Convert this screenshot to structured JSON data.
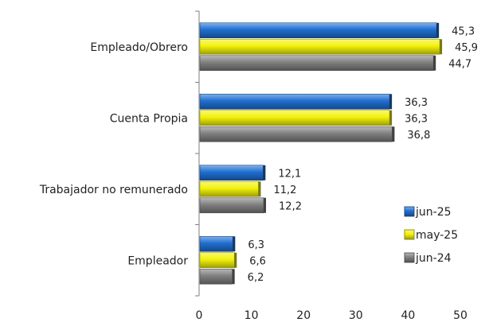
{
  "chart_data": {
    "type": "bar",
    "orientation": "horizontal",
    "title": "",
    "xlabel": "",
    "ylabel": "",
    "categories": [
      "Empleado/Obrero",
      "Cuenta Propia",
      "Trabajador no remunerado",
      "Empleador"
    ],
    "series": [
      {
        "name": "jun-25",
        "values": [
          45.3,
          36.3,
          12.1,
          6.3
        ],
        "value_labels": [
          "45,3",
          "36,3",
          "12,1",
          "6,3"
        ],
        "color": "#1f6fd1"
      },
      {
        "name": "may-25",
        "values": [
          45.9,
          36.3,
          11.2,
          6.6
        ],
        "value_labels": [
          "45,9",
          "36,3",
          "11,2",
          "6,6"
        ],
        "color": "#f2f20a"
      },
      {
        "name": "jun-24",
        "values": [
          44.7,
          36.8,
          12.2,
          6.2
        ],
        "value_labels": [
          "44,7",
          "36,8",
          "12,2",
          "6,2"
        ],
        "color": "#808080"
      }
    ],
    "xlim": [
      0,
      50
    ],
    "xticks": [
      0,
      10,
      20,
      30,
      40,
      50
    ],
    "xtick_labels": [
      "0",
      "10",
      "20",
      "30",
      "40",
      "50"
    ],
    "grid": false,
    "legend_position": "right"
  }
}
